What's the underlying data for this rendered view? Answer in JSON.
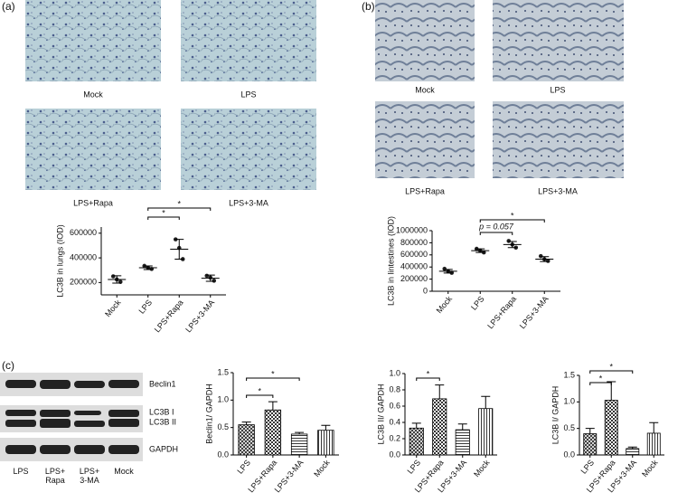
{
  "figure": {
    "panel_labels": [
      "(a)",
      "(b)",
      "(c)"
    ],
    "captions_a": [
      "Mock",
      "LPS",
      "LPS+Rapa",
      "LPS+3-MA"
    ],
    "captions_b": [
      "Mock",
      "LPS",
      "LPS+Rapa",
      "LPS+3-MA"
    ],
    "blot_bands": [
      "Beclin1",
      "LC3B I",
      "LC3B II",
      "GAPDH"
    ],
    "blot_lanes": [
      "LPS",
      "LPS+ Rapa",
      "LPS+ 3-MA",
      "Mock"
    ]
  },
  "chart_data": [
    {
      "type": "dot",
      "y_label": "LC3B in lungs (IOD)",
      "categories": [
        "Mock",
        "LPS",
        "LPS+Rapa",
        "LPS+3-MA"
      ],
      "values": [
        225000,
        320000,
        470000,
        235000
      ],
      "errors": [
        30000,
        15000,
        80000,
        25000
      ],
      "points": [
        [
          250000,
          225000,
          205000
        ],
        [
          335000,
          320000,
          310000
        ],
        [
          550000,
          480000,
          390000
        ],
        [
          255000,
          240000,
          215000
        ]
      ],
      "ylim": [
        100000,
        650000
      ],
      "yticks": [
        200000,
        400000,
        600000
      ],
      "annotations": [
        {
          "between": [
            "LPS",
            "LPS+Rapa"
          ],
          "text": "*"
        },
        {
          "between": [
            "LPS",
            "LPS+3-MA"
          ],
          "text": "*"
        }
      ]
    },
    {
      "type": "dot",
      "y_label": "LC3B in lintestines (IOD)",
      "categories": [
        "Mock",
        "LPS",
        "LPS+Rapa",
        "LPS+3-MA"
      ],
      "values": [
        330000,
        670000,
        770000,
        530000
      ],
      "errors": [
        30000,
        30000,
        50000,
        40000
      ],
      "points": [
        [
          370000,
          330000,
          305000
        ],
        [
          700000,
          670000,
          640000
        ],
        [
          830000,
          770000,
          720000
        ],
        [
          580000,
          530000,
          500000
        ]
      ],
      "ylim": [
        0,
        1000000
      ],
      "yticks": [
        0,
        200000,
        400000,
        600000,
        800000,
        1000000
      ],
      "annotations": [
        {
          "between": [
            "LPS",
            "LPS+Rapa"
          ],
          "text": "p = 0.057"
        },
        {
          "between": [
            "LPS",
            "LPS+3-MA"
          ],
          "text": "*"
        }
      ]
    },
    {
      "type": "bar",
      "y_label": "Beclin1/ GAPDH",
      "categories": [
        "LPS",
        "LPS+Rapa",
        "LPS+3-MA",
        "Mock"
      ],
      "values": [
        0.55,
        0.82,
        0.38,
        0.45
      ],
      "errors": [
        0.05,
        0.15,
        0.03,
        0.09
      ],
      "ylim": [
        0,
        1.5
      ],
      "yticks": [
        {
          "value": 0,
          "label": "0.0"
        },
        0.5,
        {
          "value": 1,
          "label": "1.0"
        },
        1.5
      ],
      "annotations": [
        {
          "between": [
            "LPS",
            "LPS+Rapa"
          ],
          "text": "*"
        },
        {
          "between": [
            "LPS",
            "LPS+3-MA"
          ],
          "text": "*"
        }
      ]
    },
    {
      "type": "bar",
      "y_label": "LC3B II/ GAPDH",
      "categories": [
        "LPS",
        "LPS+Rapa",
        "LPS+3-MA",
        "Mock"
      ],
      "values": [
        0.33,
        0.69,
        0.31,
        0.57
      ],
      "errors": [
        0.06,
        0.17,
        0.07,
        0.15
      ],
      "ylim": [
        0,
        1.0
      ],
      "yticks": [
        {
          "value": 0,
          "label": "0.0"
        },
        0.2,
        0.4,
        0.6,
        0.8,
        {
          "value": 1,
          "label": "1.0"
        }
      ],
      "annotations": [
        {
          "between": [
            "LPS",
            "LPS+Rapa"
          ],
          "text": "*"
        }
      ]
    },
    {
      "type": "bar",
      "y_label": "LC3B I/ GAPDH",
      "categories": [
        "LPS",
        "LPS+Rapa",
        "LPS+3-MA",
        "Mock"
      ],
      "values": [
        0.4,
        1.03,
        0.12,
        0.41
      ],
      "errors": [
        0.1,
        0.35,
        0.03,
        0.2
      ],
      "ylim": [
        0,
        1.5
      ],
      "yticks": [
        {
          "value": 0,
          "label": "0.0"
        },
        0.5,
        {
          "value": 1,
          "label": "1.0"
        },
        1.5
      ],
      "annotations": [
        {
          "between": [
            "LPS",
            "LPS+Rapa"
          ],
          "text": "*"
        },
        {
          "between": [
            "LPS",
            "LPS+3-MA"
          ],
          "text": "*"
        }
      ]
    }
  ]
}
